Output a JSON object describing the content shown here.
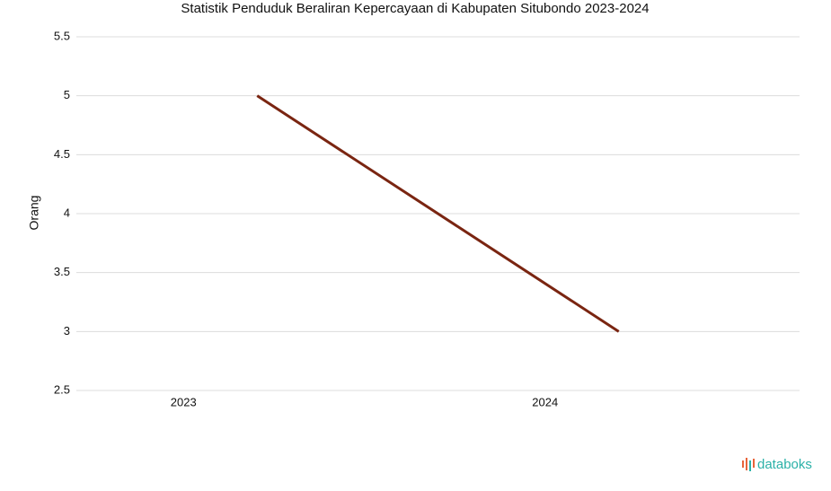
{
  "chart_data": {
    "type": "line",
    "title": "Statistik Penduduk Beraliran Kepercayaan di Kabupaten Situbondo 2023-2024",
    "y_label": "Orang",
    "categories": [
      "2023",
      "2024"
    ],
    "values": [
      5,
      3
    ],
    "color": "#7a2511",
    "ylim": [
      2.5,
      5.5
    ],
    "yticks": [
      2.5,
      3,
      3.5,
      4,
      4.5,
      5,
      5.5
    ],
    "grid": true,
    "watermark": "databoks"
  }
}
